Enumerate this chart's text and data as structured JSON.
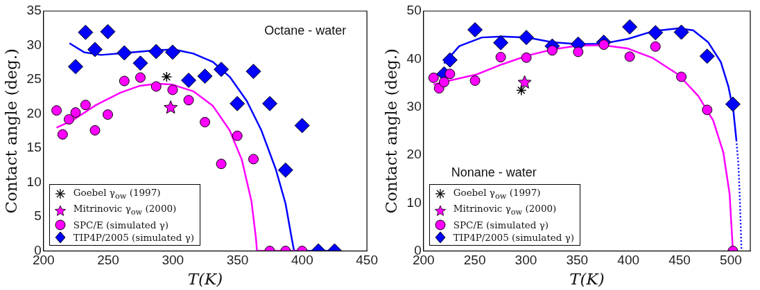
{
  "chart_data": [
    {
      "type": "scatter",
      "xlabel": "T(K)",
      "ylabel": "Contact angle (deg.)",
      "xlim": [
        200,
        450
      ],
      "xticks": [
        200,
        250,
        300,
        350,
        400,
        450
      ],
      "ylim": [
        0,
        35
      ],
      "yticks": [
        0,
        5,
        10,
        15,
        20,
        25,
        30,
        35
      ],
      "grid": false,
      "legend": "bottom left",
      "annotations": [
        "Octane - water"
      ],
      "series": [
        {
          "name": "Goebel γ$_{ow}$ (1997)",
          "color": "#000000",
          "marker": "cross",
          "x": [
            295.2
          ],
          "values": [
            25.4
          ]
        },
        {
          "name": "Mitrinovic γ$_{ow}$ (2000)",
          "color": "#ff00ff",
          "marker": "star",
          "x": [
            298.3
          ],
          "values": [
            20.9
          ]
        },
        {
          "name": "SPC/E (simulated γ)",
          "color": "#ff00ff",
          "marker": "circle",
          "x": [
            210.1,
            214.8,
            219.7,
            224.8,
            232.5,
            239.8,
            249.7,
            262.5,
            274.9,
            287.1,
            299.8,
            312.2,
            324.8,
            337.4,
            349.8,
            362.3,
            374.9,
            387.1,
            399.9
          ],
          "values": [
            20.5,
            17.0,
            19.2,
            20.2,
            21.3,
            17.6,
            19.9,
            24.8,
            25.3,
            24.0,
            23.5,
            22.0,
            18.8,
            12.7,
            16.8,
            13.4,
            0,
            0,
            0
          ]
        },
        {
          "name": "TIP4P/2005 (simulated γ)",
          "color": "#0000ff",
          "marker": "diamond",
          "x": [
            224.8,
            232.5,
            239.8,
            249.7,
            262.5,
            274.9,
            287.1,
            299.8,
            312.2,
            324.8,
            337.4,
            349.8,
            362.3,
            374.9,
            387.1,
            399.9,
            412.5,
            425.0
          ],
          "values": [
            26.9,
            31.9,
            29.4,
            32.0,
            28.9,
            27.4,
            29.1,
            29.0,
            24.9,
            25.5,
            26.5,
            21.5,
            26.2,
            21.5,
            11.8,
            18.3,
            0,
            0
          ]
        },
        {
          "type": "line",
          "color": "#ff00ff",
          "marker": "none",
          "line_style": "solid",
          "x": [
            210.1,
            222,
            240.7,
            259.5,
            274.5,
            287.7,
            299,
            315.8,
            330.8,
            343.9,
            353.3,
            360.8,
            364.2,
            365,
            400
          ],
          "values": [
            18.0,
            19.0,
            21.3,
            23.1,
            24.1,
            24.4,
            24.3,
            23.3,
            21.2,
            17.6,
            13.3,
            7.2,
            1.9,
            0,
            0
          ]
        },
        {
          "type": "line",
          "color": "#0000ff",
          "marker": "none",
          "line_style": "solid",
          "x": [
            220.1,
            231.3,
            244.5,
            263.2,
            287.6,
            300.8,
            315.8,
            330.8,
            344,
            357.1,
            368.4,
            379.6,
            387.1,
            391.8,
            393.7,
            426.5
          ],
          "values": [
            30.3,
            29.0,
            28.6,
            28.9,
            29.3,
            29.4,
            28.8,
            27.6,
            25.4,
            21.9,
            17.6,
            11.9,
            6.9,
            1.9,
            0,
            0
          ]
        }
      ]
    },
    {
      "type": "scatter",
      "xlabel": "T(K)",
      "ylabel": "Contact angle (deg.)",
      "xlim": [
        200,
        519
      ],
      "xticks": [
        200,
        250,
        300,
        350,
        400,
        450,
        500
      ],
      "ylim": [
        0,
        50
      ],
      "yticks": [
        0,
        10,
        20,
        30,
        40,
        50
      ],
      "grid": false,
      "legend": "bottom left",
      "annotations": [
        "Nonane - water"
      ],
      "series": [
        {
          "name": "Goebel γ$_{ow}$ (1997)",
          "color": "#000000",
          "marker": "cross",
          "x": [
            295.5
          ],
          "values": [
            33.5
          ]
        },
        {
          "name": "Mitrinovic γ$_{ow}$ (2000)",
          "color": "#ff00ff",
          "marker": "star",
          "x": [
            298.7
          ],
          "values": [
            35.1
          ]
        },
        {
          "name": "SPC/E (simulated γ)",
          "color": "#ff00ff",
          "marker": "circle",
          "x": [
            209.8,
            215.2,
            220.1,
            225.8,
            250.3,
            275.4,
            300.4,
            325.7,
            351.0,
            376.0,
            401.3,
            426.4,
            451.7,
            476.9,
            502.0
          ],
          "values": [
            36.1,
            33.9,
            35.2,
            36.9,
            35.5,
            40.4,
            40.3,
            41.8,
            41.5,
            43.0,
            40.5,
            42.6,
            36.3,
            29.4,
            0
          ]
        },
        {
          "name": "TIP4P/2005 (simulated γ)",
          "color": "#0000ff",
          "marker": "diamond",
          "x": [
            220.1,
            225.8,
            250.3,
            275.4,
            300.4,
            325.7,
            351.0,
            376.0,
            401.3,
            426.4,
            451.7,
            476.9,
            502.0
          ],
          "values": [
            36.9,
            39.8,
            46.1,
            43.4,
            44.5,
            42.7,
            43.1,
            43.5,
            46.7,
            45.5,
            45.6,
            40.6,
            30.6
          ]
        },
        {
          "type": "line",
          "color": "#ff00ff",
          "marker": "none",
          "line_style": "solid",
          "x": [
            209.8,
            227.5,
            252,
            276.6,
            301.2,
            325.7,
            350.3,
            374.8,
            399.4,
            424,
            448.5,
            468.2,
            482.8,
            492.7,
            498.8,
            501.3,
            502
          ],
          "values": [
            34.7,
            35.6,
            36.8,
            38.9,
            40.7,
            42.0,
            42.8,
            42.9,
            42.2,
            40.2,
            36.8,
            32.3,
            27.2,
            20.5,
            11.9,
            2.7,
            0
          ]
        },
        {
          "type": "line",
          "color": "#0000ff",
          "marker": "none",
          "line_style": "solid",
          "x": [
            220.1,
            234.9,
            257,
            276.6,
            301.2,
            325.7,
            350.3,
            374.8,
            399.4,
            424,
            448.5,
            463.2,
            477.9,
            490.2,
            497.6,
            502.5,
            505.4
          ],
          "values": [
            39.1,
            42.7,
            44.5,
            44.7,
            44.5,
            43.5,
            43.1,
            43.2,
            44.2,
            45.8,
            46.4,
            46.0,
            43.5,
            39.4,
            34.3,
            29.2,
            23.1
          ]
        },
        {
          "type": "line",
          "color": "#0000ff",
          "marker": "none",
          "line_style": "dotted",
          "x": [
            505.4,
            507.4,
            508.9,
            510.4
          ],
          "values": [
            23.1,
            18.0,
            10.3,
            0
          ]
        }
      ]
    }
  ]
}
